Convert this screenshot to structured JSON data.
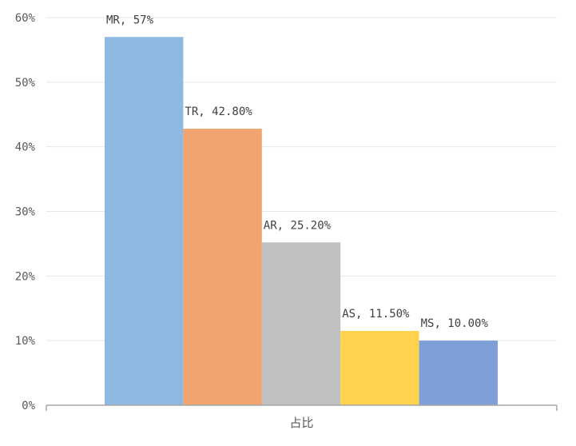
{
  "chart_data": {
    "type": "bar",
    "category": "占比",
    "ylim": [
      0,
      60
    ],
    "yticks": [
      0,
      10,
      20,
      30,
      40,
      50,
      60
    ],
    "ytick_labels": [
      "0%",
      "10%",
      "20%",
      "30%",
      "40%",
      "50%",
      "60%"
    ],
    "grid": true,
    "series": [
      {
        "name": "MR",
        "value": 57.0,
        "label": "MR, 57%",
        "color": "#8db9e3"
      },
      {
        "name": "TR",
        "value": 42.8,
        "label": "TR, 42.80%",
        "color": "#f1a46f"
      },
      {
        "name": "AR",
        "value": 25.2,
        "label": "AR, 25.20%",
        "color": "#c0c0c0"
      },
      {
        "name": "AS",
        "value": 11.5,
        "label": "AS, 11.50%",
        "color": "#ffd24d"
      },
      {
        "name": "MS",
        "value": 10.0,
        "label": "MS, 10.00%",
        "color": "#7ea0d6"
      }
    ]
  }
}
